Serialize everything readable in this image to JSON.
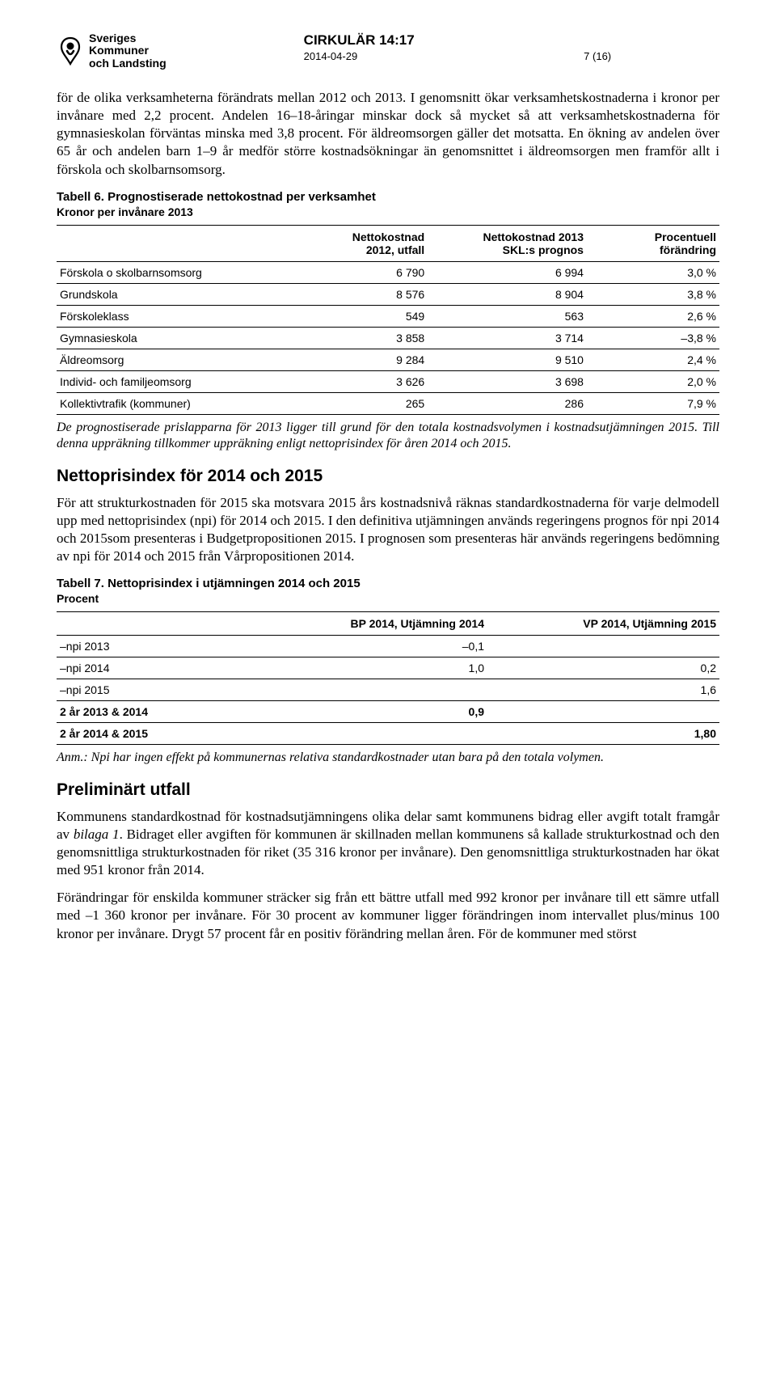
{
  "header": {
    "org_line1": "Sveriges",
    "org_line2": "Kommuner",
    "org_line3": "och Landsting",
    "circ_title": "CIRKULÄR 14:17",
    "date": "2014-04-29",
    "page": "7 (16)"
  },
  "para1": "för de olika verksamheterna förändrats mellan 2012 och 2013. I genomsnitt ökar verksamhetskostnaderna i kronor per invånare med 2,2 procent. Andelen 16–18-åringar minskar dock så mycket så att verksamhetskostnaderna för gymnasieskolan förväntas minska med 3,8 procent. För äldreomsorgen gäller det motsatta. En ökning av andelen över 65 år och andelen barn 1–9 år medför större kostnadsökningar än genomsnittet i äldreomsorgen men framför allt i förskola och skolbarnsomsorg.",
  "tbl6": {
    "title": "Tabell 6. Prognostiserade nettokostnad per verksamhet",
    "subtitle": "Kronor per invånare 2013",
    "headers": {
      "c1": "",
      "c2a": "Nettokostnad",
      "c2b": "2012, utfall",
      "c3a": "Nettokostnad 2013",
      "c3b": "SKL:s prognos",
      "c4a": "Procentuell",
      "c4b": "förändring"
    },
    "rows": [
      {
        "label": "Förskola o skolbarnsomsorg",
        "a": "6 790",
        "b": "6 994",
        "c": "3,0 %"
      },
      {
        "label": "Grundskola",
        "a": "8 576",
        "b": "8 904",
        "c": "3,8 %"
      },
      {
        "label": "Förskoleklass",
        "a": "549",
        "b": "563",
        "c": "2,6 %"
      },
      {
        "label": "Gymnasieskola",
        "a": "3 858",
        "b": "3 714",
        "c": "–3,8 %"
      },
      {
        "label": "Äldreomsorg",
        "a": "9 284",
        "b": "9 510",
        "c": "2,4 %"
      },
      {
        "label": "Individ- och familjeomsorg",
        "a": "3 626",
        "b": "3 698",
        "c": "2,0 %"
      },
      {
        "label": "Kollektivtrafik (kommuner)",
        "a": "265",
        "b": "286",
        "c": "7,9 %"
      }
    ]
  },
  "note_tbl6": "De prognostiserade prislapparna för 2013 ligger till grund för den totala kostnadsvolymen i kostnadsutjämningen 2015. Till denna uppräkning tillkommer uppräkning enligt nettoprisindex för åren 2014 och 2015.",
  "heading_npi": "Nettoprisindex för 2014 och 2015",
  "para_npi": "För att strukturkostnaden för 2015 ska motsvara 2015 års kostnadsnivå räknas standardkostnaderna för varje delmodell upp med nettoprisindex (npi) för 2014 och 2015. I den definitiva utjämningen används regeringens prognos för npi 2014 och 2015som presenteras i Budgetpropositionen 2015. I prognosen som presenteras här används regeringens bedömning av npi för 2014 och 2015 från Vårpropositionen 2014.",
  "tbl7": {
    "title": "Tabell 7. Nettoprisindex i utjämningen 2014 och 2015",
    "subtitle": "Procent",
    "headers": {
      "c1": "",
      "c2": "BP 2014, Utjämning 2014",
      "c3": "VP 2014, Utjämning 2015"
    },
    "rows": [
      {
        "label": "–npi 2013",
        "a": "–0,1",
        "b": "",
        "bold": false
      },
      {
        "label": "–npi 2014",
        "a": "1,0",
        "b": "0,2",
        "bold": false
      },
      {
        "label": "–npi 2015",
        "a": "",
        "b": "1,6",
        "bold": false
      },
      {
        "label": "2 år 2013 & 2014",
        "a": "0,9",
        "b": "",
        "bold": true
      },
      {
        "label": "2 år 2014 & 2015",
        "a": "",
        "b": "1,80",
        "bold": true
      }
    ]
  },
  "note_tbl7": "Anm.: Npi har ingen effekt på kommunernas relativa standardkostnader utan bara på den totala volymen.",
  "heading_prelim": "Preliminärt utfall",
  "para_prelim1_a": "Kommunens standardkostnad för kostnadsutjämningens olika delar samt kommunens bidrag eller avgift totalt framgår av ",
  "para_prelim1_i": "bilaga 1",
  "para_prelim1_b": ". Bidraget eller avgiften för kommunen är skillnaden mellan kommunens så kallade strukturkostnad och den genomsnittliga strukturkostnaden för riket (35 316 kronor per invånare). Den genomsnittliga strukturkostnaden har ökat med 951 kronor från 2014.",
  "para_prelim2": "Förändringar för enskilda kommuner sträcker sig från ett bättre utfall med 992 kronor per invånare till ett sämre utfall med –1 360 kronor per invånare. För 30 procent av kommuner ligger förändringen inom intervallet plus/minus 100 kronor per invånare. Drygt 57 procent får en positiv förändring mellan åren. För de kommuner med störst"
}
